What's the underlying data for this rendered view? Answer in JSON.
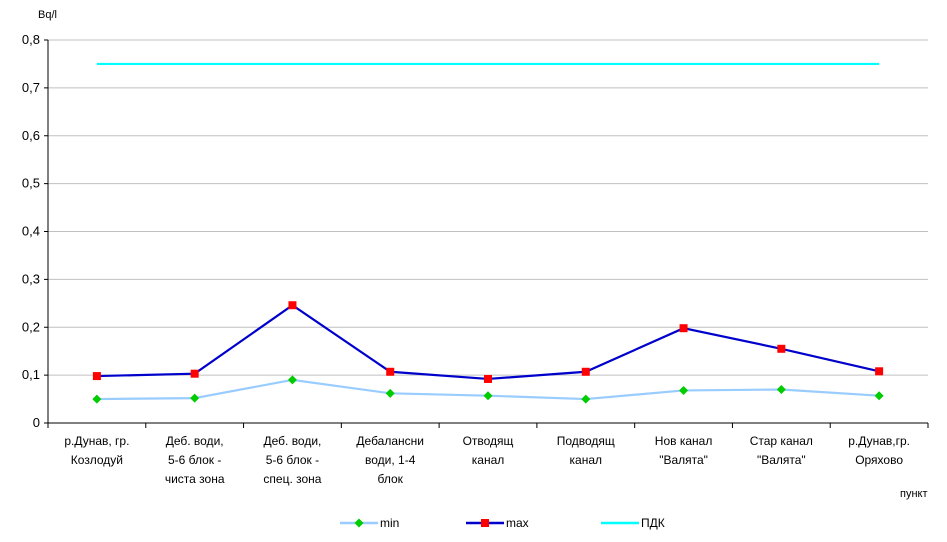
{
  "chart_data": {
    "type": "line",
    "ylabel": "Bq/l",
    "xlabel": "пункт",
    "ylim": [
      0,
      0.8
    ],
    "yticks": [
      "0",
      "0,1",
      "0,2",
      "0,3",
      "0,4",
      "0,5",
      "0,6",
      "0,7",
      "0,8"
    ],
    "grid": true,
    "legend": "bottom",
    "categories": [
      [
        "р.Дунав, гр.",
        "Козлодуй"
      ],
      [
        "Деб. води,",
        "5-6 блок -",
        "чиста зона"
      ],
      [
        "Деб. води,",
        "5-6 блок -",
        "спец. зона"
      ],
      [
        "Дебалансни",
        "води, 1-4",
        "блок"
      ],
      [
        "Отводящ",
        "канал"
      ],
      [
        "Подводящ",
        "канал"
      ],
      [
        "Нов канал",
        "\"Валята\""
      ],
      [
        "Стар канал",
        "\"Валята\""
      ],
      [
        "р.Дунав,гр.",
        "Оряхово"
      ]
    ],
    "series": [
      {
        "name": "min",
        "color": "#99ccff",
        "marker": "diamond",
        "marker_color": "#00cc00",
        "values": [
          0.05,
          0.052,
          0.09,
          0.062,
          0.057,
          0.05,
          0.068,
          0.07,
          0.057
        ]
      },
      {
        "name": "max",
        "color": "#0000cc",
        "marker": "square",
        "marker_color": "#ff0000",
        "values": [
          0.098,
          0.103,
          0.246,
          0.107,
          0.092,
          0.107,
          0.198,
          0.155,
          0.108
        ]
      },
      {
        "name": "ПДК",
        "color": "#00ffff",
        "marker": "none",
        "values": [
          0.75,
          0.75,
          0.75,
          0.75,
          0.75,
          0.75,
          0.75,
          0.75,
          0.75
        ]
      }
    ]
  }
}
